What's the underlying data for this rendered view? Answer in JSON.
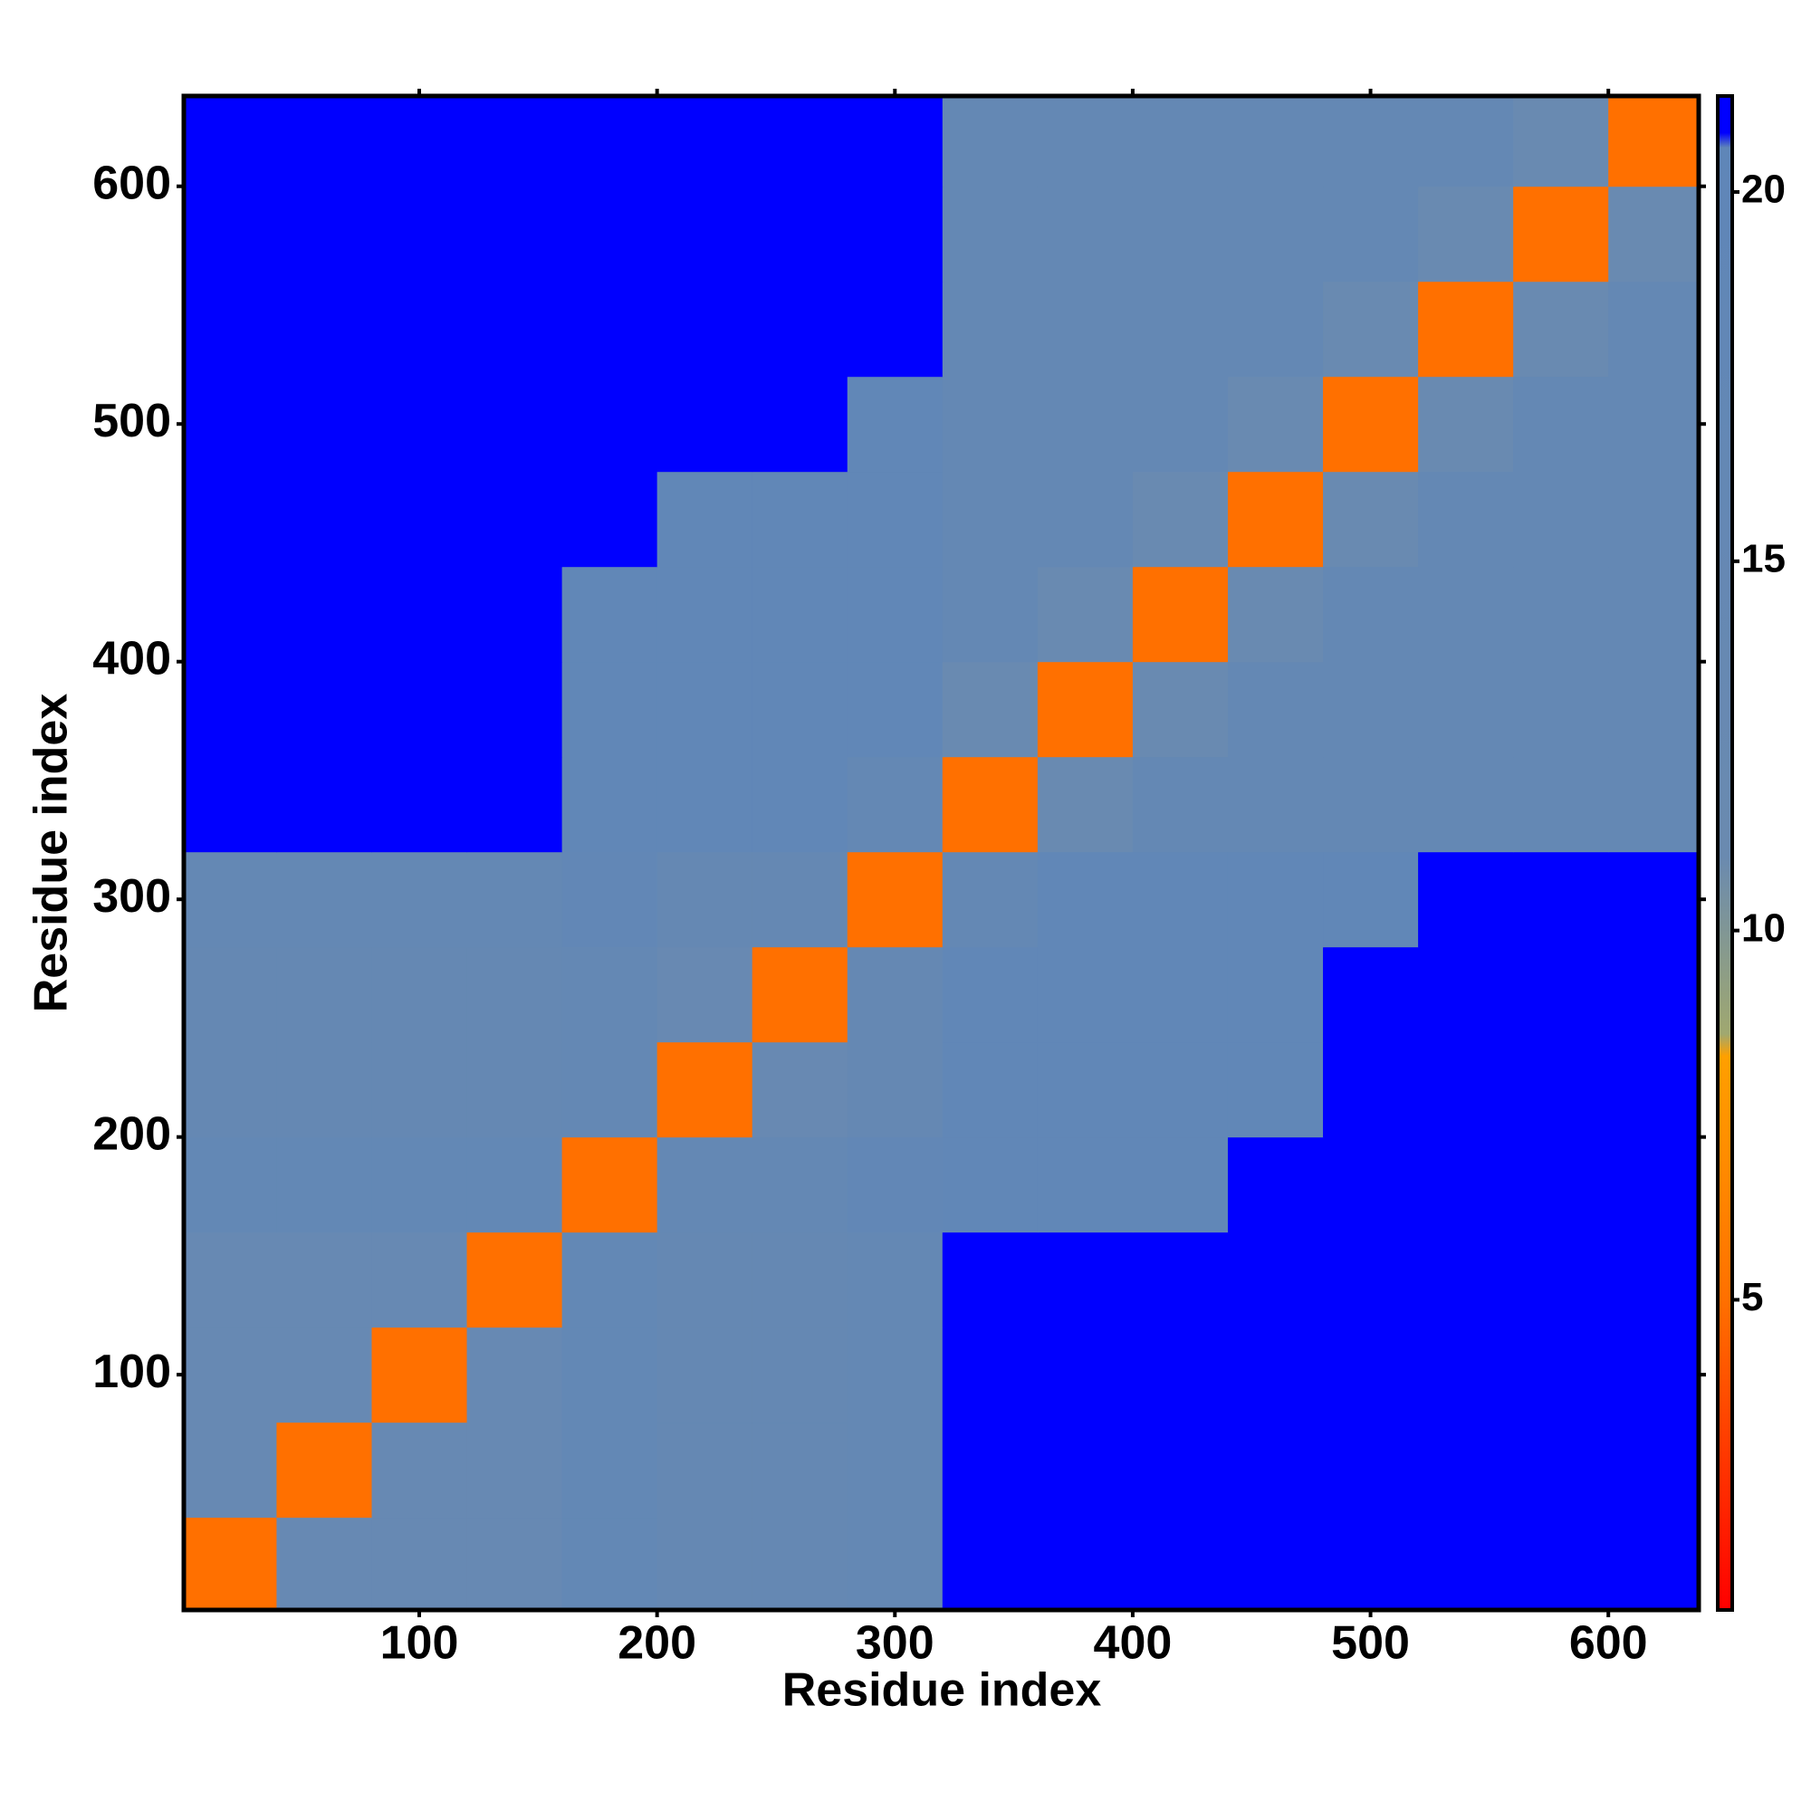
{
  "chart_data": {
    "type": "heatmap",
    "x_label": "Residue index",
    "y_label": "Residue index",
    "xbins": [
      0,
      40,
      80,
      120,
      160,
      200,
      240,
      280,
      320,
      360,
      400,
      440,
      480,
      520,
      560,
      600,
      640
    ],
    "ybins": [
      0,
      40,
      80,
      120,
      160,
      200,
      240,
      280,
      320,
      360,
      400,
      440,
      480,
      520,
      560,
      600,
      640
    ],
    "values": [
      [
        5,
        14,
        14,
        14,
        17,
        15,
        15,
        16,
        21,
        21,
        21,
        21,
        21,
        21,
        21,
        21
      ],
      [
        14,
        5,
        14,
        14,
        17,
        15,
        15,
        16,
        21,
        21,
        21,
        21,
        21,
        21,
        21,
        21
      ],
      [
        14,
        14,
        5,
        14,
        17,
        15,
        15,
        16,
        21,
        21,
        21,
        21,
        21,
        21,
        21,
        21
      ],
      [
        14,
        14,
        14,
        5,
        17,
        15,
        15,
        16,
        21,
        21,
        21,
        21,
        21,
        21,
        21,
        21
      ],
      [
        17,
        17,
        17,
        17,
        5,
        16,
        16,
        18,
        19,
        19,
        19,
        21,
        21,
        21,
        21,
        21
      ],
      [
        15,
        15,
        15,
        15,
        16,
        5,
        13,
        15,
        19,
        19,
        19,
        19,
        21,
        21,
        21,
        21
      ],
      [
        15,
        15,
        15,
        15,
        16,
        13,
        5,
        15,
        19,
        19,
        19,
        19,
        21,
        21,
        21,
        21
      ],
      [
        16,
        16,
        16,
        16,
        18,
        15,
        15,
        5,
        16,
        19,
        19,
        19,
        19,
        21,
        21,
        21
      ],
      [
        21,
        21,
        21,
        21,
        19,
        19,
        19,
        16,
        5,
        12,
        16,
        16,
        16,
        16,
        16,
        16
      ],
      [
        21,
        21,
        21,
        21,
        19,
        19,
        19,
        19,
        12,
        5,
        12,
        16,
        16,
        16,
        16,
        16
      ],
      [
        21,
        21,
        21,
        21,
        19,
        19,
        19,
        19,
        16,
        12,
        5,
        12,
        16,
        16,
        16,
        16
      ],
      [
        21,
        21,
        21,
        21,
        21,
        19,
        19,
        19,
        16,
        16,
        12,
        5,
        12,
        16,
        16,
        16
      ],
      [
        21,
        21,
        21,
        21,
        21,
        21,
        21,
        19,
        16,
        16,
        16,
        12,
        5,
        12,
        16,
        16
      ],
      [
        21,
        21,
        21,
        21,
        21,
        21,
        21,
        21,
        16,
        16,
        16,
        16,
        12,
        5,
        12,
        16
      ],
      [
        21,
        21,
        21,
        21,
        21,
        21,
        21,
        21,
        16,
        16,
        16,
        16,
        16,
        12,
        5,
        12
      ],
      [
        21,
        21,
        21,
        21,
        21,
        21,
        21,
        21,
        16,
        16,
        16,
        16,
        16,
        16,
        12,
        5
      ]
    ],
    "xlim": [
      1,
      638
    ],
    "ylim": [
      1,
      638
    ],
    "xticks": [
      100,
      200,
      300,
      400,
      500,
      600
    ],
    "yticks": [
      100,
      200,
      300,
      400,
      500,
      600
    ],
    "clim": [
      0.8,
      21.3
    ],
    "cticks": [
      5,
      10,
      15,
      20
    ],
    "colormap": [
      {
        "value": 0.8,
        "color": "#ff0000"
      },
      {
        "value": 5,
        "color": "#ff7000"
      },
      {
        "value": 8.3,
        "color": "#ffa000"
      },
      {
        "value": 8.6,
        "color": "#a0a870"
      },
      {
        "value": 11,
        "color": "#6a8ab0"
      },
      {
        "value": 20.6,
        "color": "#5f86b8"
      },
      {
        "value": 20.8,
        "color": "#0000ff"
      },
      {
        "value": 21.3,
        "color": "#0000ff"
      }
    ]
  }
}
